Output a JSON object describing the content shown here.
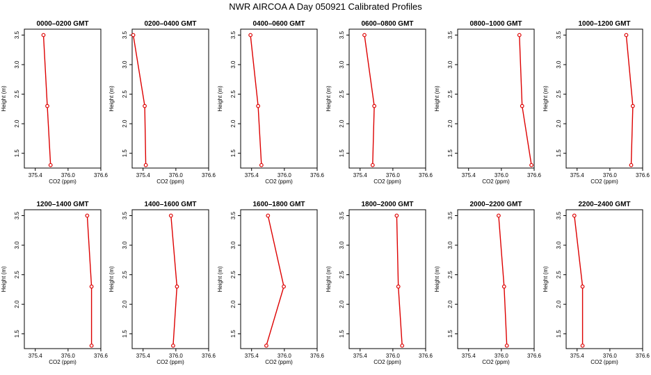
{
  "chart_data": {
    "type": "line",
    "title": "NWR AIRCOA A  Day 050921  Calibrated Profiles",
    "xlabel": "CO2 (ppm)",
    "ylabel": "Height (m)",
    "xlim": [
      375.2,
      376.6
    ],
    "ylim": [
      1.25,
      3.6
    ],
    "xticks": [
      "375.4",
      "376.0",
      "376.6"
    ],
    "yticks": [
      "1.5",
      "2.0",
      "2.5",
      "3.0",
      "3.5"
    ],
    "line_color": "#dd0000",
    "marker_color": "#dd0000",
    "panels": [
      {
        "title": "0000–0200 GMT",
        "points": [
          {
            "x": 375.55,
            "y": 3.5
          },
          {
            "x": 375.62,
            "y": 2.3
          },
          {
            "x": 375.68,
            "y": 1.3
          }
        ]
      },
      {
        "title": "0200–0400 GMT",
        "points": [
          {
            "x": 375.22,
            "y": 3.5
          },
          {
            "x": 375.43,
            "y": 2.3
          },
          {
            "x": 375.45,
            "y": 1.3
          }
        ]
      },
      {
        "title": "0400–0600 GMT",
        "points": [
          {
            "x": 375.38,
            "y": 3.5
          },
          {
            "x": 375.52,
            "y": 2.3
          },
          {
            "x": 375.58,
            "y": 1.3
          }
        ]
      },
      {
        "title": "0600–0800 GMT",
        "points": [
          {
            "x": 375.48,
            "y": 3.5
          },
          {
            "x": 375.66,
            "y": 2.3
          },
          {
            "x": 375.63,
            "y": 1.3
          }
        ]
      },
      {
        "title": "0800–1000 GMT",
        "points": [
          {
            "x": 376.33,
            "y": 3.5
          },
          {
            "x": 376.38,
            "y": 2.3
          },
          {
            "x": 376.55,
            "y": 1.3
          }
        ]
      },
      {
        "title": "1000–1200 GMT",
        "points": [
          {
            "x": 376.3,
            "y": 3.5
          },
          {
            "x": 376.42,
            "y": 2.3
          },
          {
            "x": 376.39,
            "y": 1.3
          }
        ]
      },
      {
        "title": "1200–1400 GMT",
        "points": [
          {
            "x": 376.35,
            "y": 3.5
          },
          {
            "x": 376.43,
            "y": 2.3
          },
          {
            "x": 376.43,
            "y": 1.3
          }
        ]
      },
      {
        "title": "1400–1600 GMT",
        "points": [
          {
            "x": 375.91,
            "y": 3.5
          },
          {
            "x": 376.02,
            "y": 2.3
          },
          {
            "x": 375.95,
            "y": 1.3
          }
        ]
      },
      {
        "title": "1600–1800 GMT",
        "points": [
          {
            "x": 375.7,
            "y": 3.5
          },
          {
            "x": 375.99,
            "y": 2.3
          },
          {
            "x": 375.67,
            "y": 1.3
          }
        ]
      },
      {
        "title": "1800–2000 GMT",
        "points": [
          {
            "x": 376.07,
            "y": 3.5
          },
          {
            "x": 376.1,
            "y": 2.3
          },
          {
            "x": 376.17,
            "y": 1.3
          }
        ]
      },
      {
        "title": "2000–2200 GMT",
        "points": [
          {
            "x": 375.95,
            "y": 3.5
          },
          {
            "x": 376.05,
            "y": 2.3
          },
          {
            "x": 376.1,
            "y": 1.3
          }
        ]
      },
      {
        "title": "2200–2400 GMT",
        "points": [
          {
            "x": 375.35,
            "y": 3.5
          },
          {
            "x": 375.5,
            "y": 2.3
          },
          {
            "x": 375.5,
            "y": 1.3
          }
        ]
      }
    ]
  }
}
